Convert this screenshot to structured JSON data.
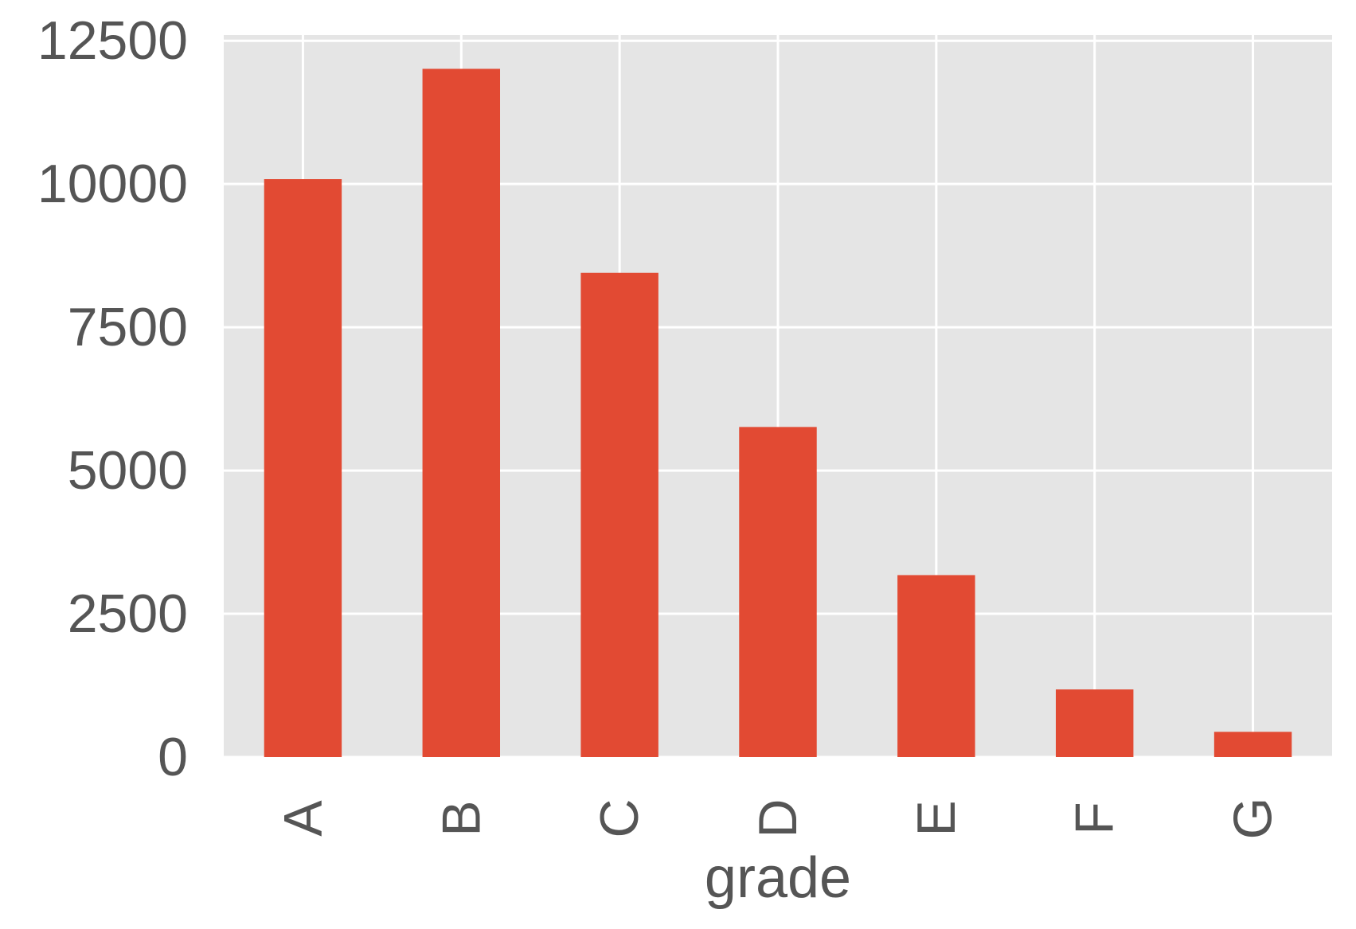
{
  "chart_data": {
    "type": "bar",
    "title": "",
    "xlabel": "grade",
    "ylabel": "",
    "categories": [
      "A",
      "B",
      "C",
      "D",
      "E",
      "F",
      "G"
    ],
    "values": [
      10085,
      12010,
      8450,
      5760,
      3175,
      1180,
      440
    ],
    "ylim": [
      0,
      12600
    ],
    "yticks": [
      0,
      2500,
      5000,
      7500,
      10000,
      12500
    ],
    "ytick_labels": [
      "0",
      "2500",
      "5000",
      "7500",
      "10000",
      "12500"
    ],
    "grid": true,
    "legend": "none",
    "colors": {
      "bar": "#E24A33",
      "plot_background": "#E5E5E5",
      "grid": "#FFFFFF",
      "text": "#555555"
    }
  }
}
